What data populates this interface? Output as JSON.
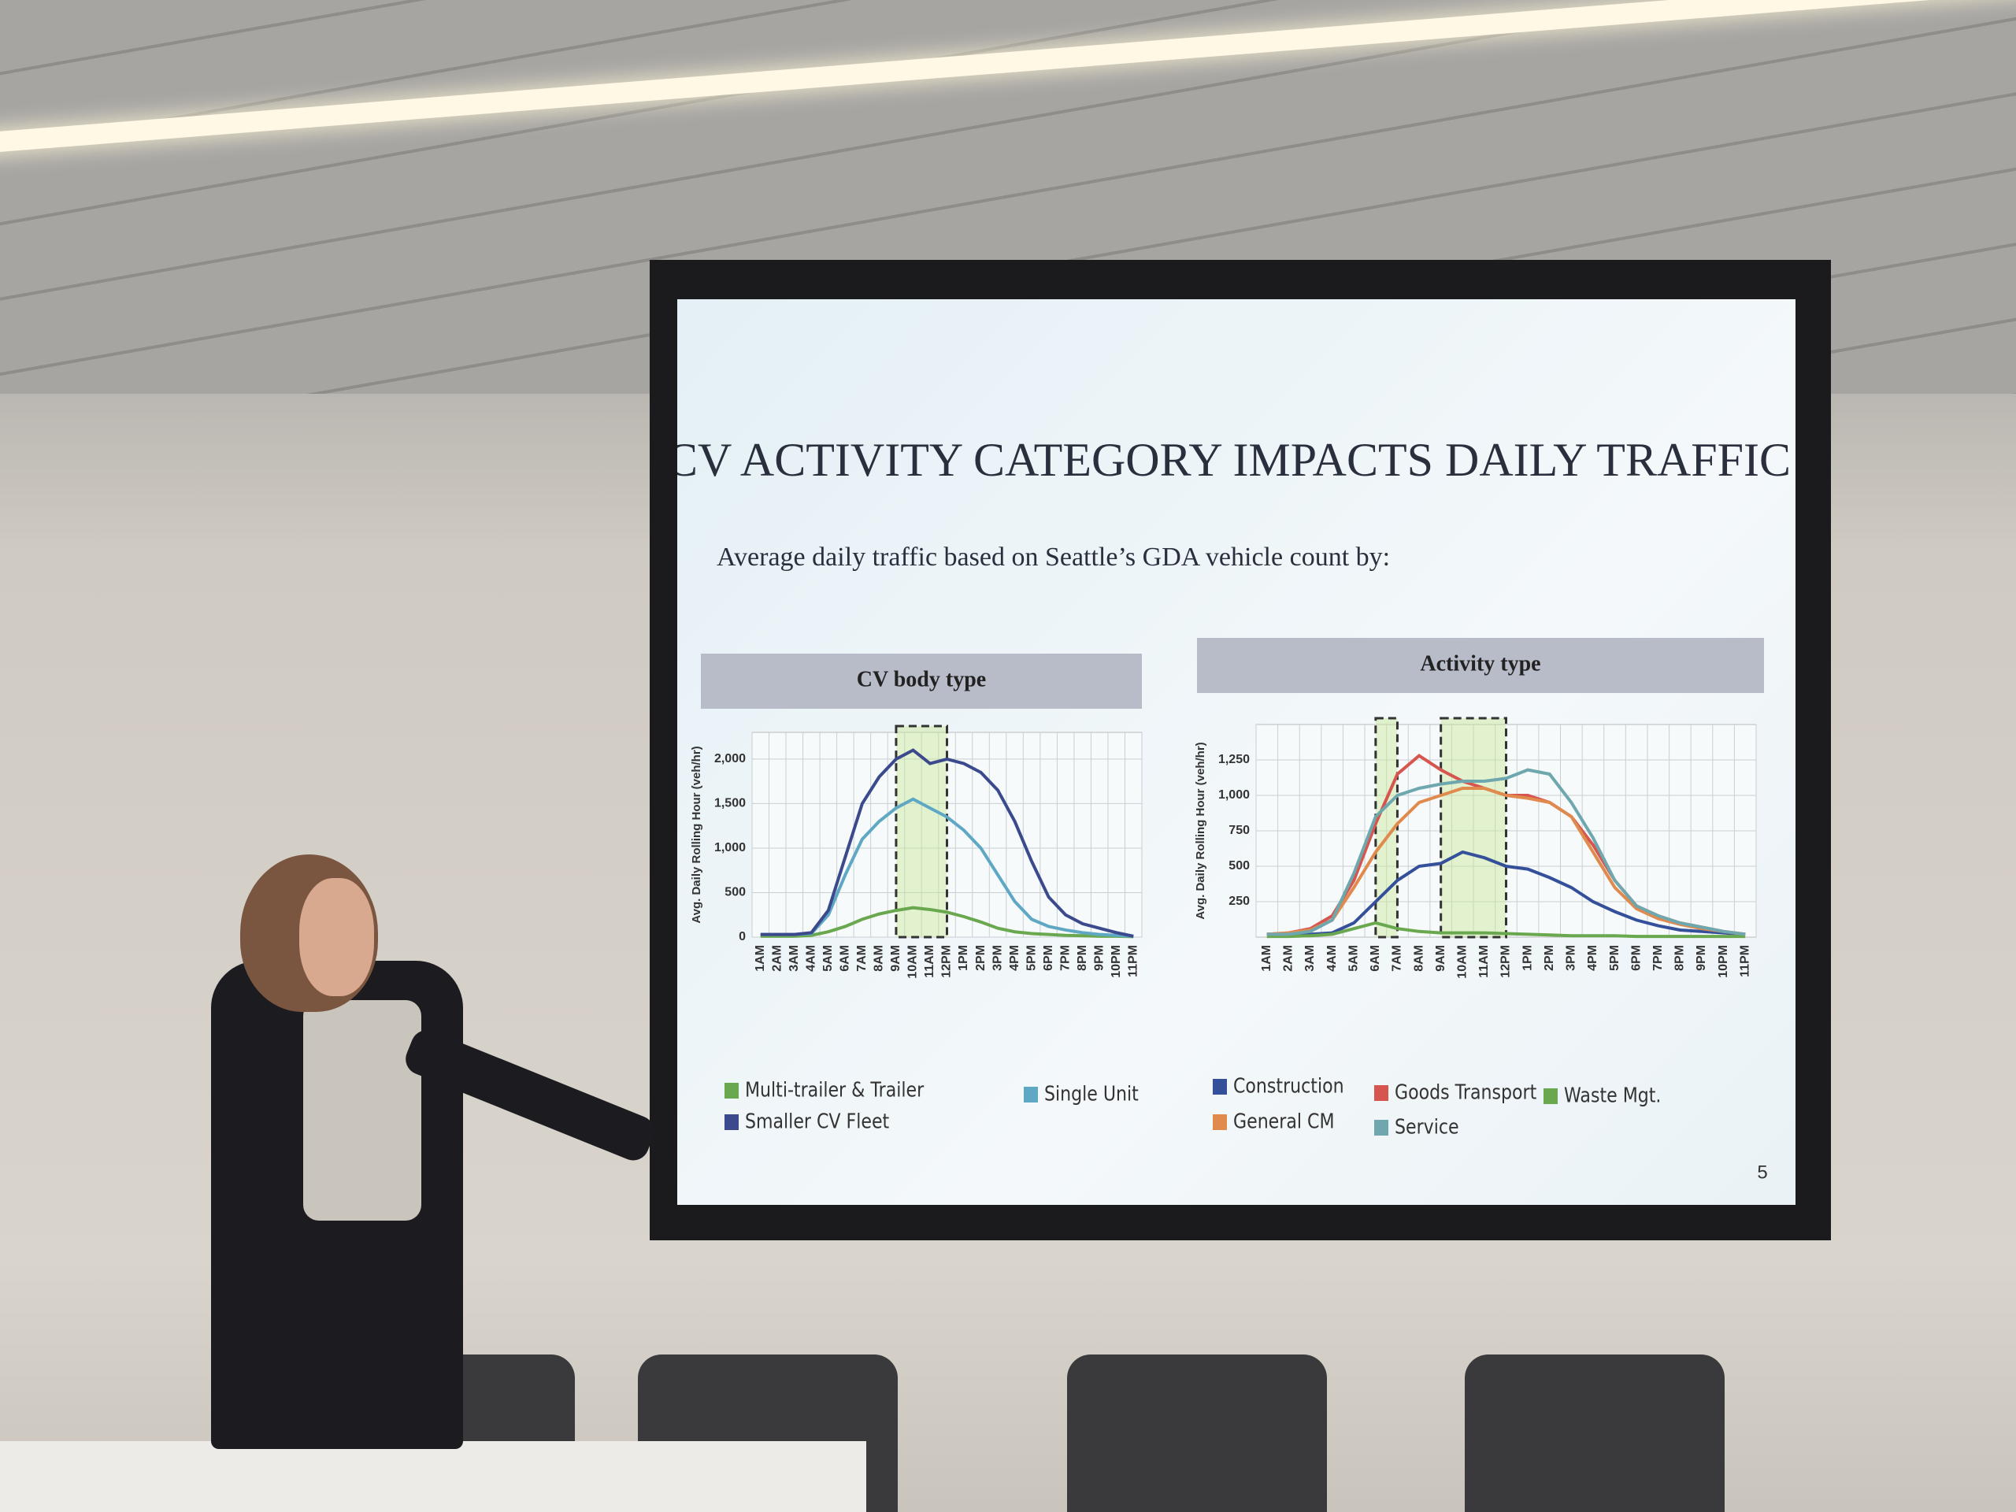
{
  "slide": {
    "title": "CV ACTIVITY CATEGORY IMPACTS DAILY TRAFFIC",
    "subtitle": "Average daily traffic based on Seattle’s GDA vehicle count by:",
    "page_number": "5"
  },
  "chart_data": [
    {
      "type": "line",
      "title": "CV body type",
      "ylabel": "Avg. Daily Rolling Hour (veh/hr)",
      "categories": [
        "1AM",
        "2AM",
        "3AM",
        "4AM",
        "5AM",
        "6AM",
        "7AM",
        "8AM",
        "9AM",
        "10AM",
        "11AM",
        "12PM",
        "1PM",
        "2PM",
        "3PM",
        "4PM",
        "5PM",
        "6PM",
        "7PM",
        "8PM",
        "9PM",
        "10PM",
        "11PM"
      ],
      "ylim": [
        0,
        2300
      ],
      "yticks": [
        0,
        500,
        {
          "value": 1000,
          "label": "1,000"
        },
        {
          "value": 1500,
          "label": "1,500"
        },
        {
          "value": 2000,
          "label": "2,000"
        }
      ],
      "grid": true,
      "highlights": [
        {
          "from": "9AM",
          "to": "12PM"
        }
      ],
      "series": [
        {
          "name": "Multi-trailer & Trailer",
          "color": "#6aa84f",
          "values": [
            10,
            10,
            10,
            20,
            60,
            120,
            200,
            260,
            300,
            330,
            310,
            280,
            230,
            170,
            100,
            60,
            40,
            30,
            20,
            15,
            10,
            10,
            5
          ]
        },
        {
          "name": "Single Unit",
          "color": "#5fa8c4",
          "values": [
            30,
            30,
            30,
            40,
            250,
            700,
            1100,
            1300,
            1450,
            1550,
            1450,
            1350,
            1200,
            1000,
            700,
            400,
            200,
            120,
            80,
            50,
            30,
            20,
            10
          ]
        },
        {
          "name": "Smaller CV Fleet",
          "color": "#3b4a8c",
          "values": [
            30,
            30,
            30,
            50,
            300,
            900,
            1500,
            1800,
            2000,
            2100,
            1950,
            2000,
            1950,
            1850,
            1650,
            1300,
            850,
            450,
            250,
            150,
            100,
            50,
            10
          ]
        }
      ]
    },
    {
      "type": "line",
      "title": "Activity type",
      "ylabel": "Avg. Daily Rolling Hour (veh/hr)",
      "categories": [
        "1AM",
        "2AM",
        "3AM",
        "4AM",
        "5AM",
        "6AM",
        "7AM",
        "8AM",
        "9AM",
        "10AM",
        "11AM",
        "12PM",
        "1PM",
        "2PM",
        "3PM",
        "4PM",
        "5PM",
        "6PM",
        "7PM",
        "8PM",
        "9PM",
        "10PM",
        "11PM"
      ],
      "ylim": [
        0,
        1500
      ],
      "yticks": [
        250,
        500,
        750,
        {
          "value": 1000,
          "label": "1,000"
        },
        {
          "value": 1250,
          "label": "1,250"
        }
      ],
      "grid": true,
      "highlights": [
        {
          "from": "6AM",
          "to": "7AM"
        },
        {
          "from": "9AM",
          "to": "12PM"
        }
      ],
      "series": [
        {
          "name": "Construction",
          "color": "#34509a",
          "values": [
            20,
            20,
            20,
            30,
            100,
            250,
            400,
            500,
            520,
            600,
            560,
            500,
            480,
            420,
            350,
            250,
            180,
            120,
            80,
            50,
            40,
            30,
            20
          ]
        },
        {
          "name": "Goods Transport",
          "color": "#d6564f",
          "values": [
            20,
            30,
            60,
            150,
            400,
            800,
            1150,
            1280,
            1180,
            1100,
            1050,
            1000,
            1000,
            950,
            850,
            650,
            400,
            220,
            150,
            100,
            70,
            40,
            20
          ]
        },
        {
          "name": "Waste Mgt.",
          "color": "#6aa84f",
          "values": [
            5,
            5,
            10,
            20,
            60,
            100,
            60,
            40,
            30,
            30,
            30,
            25,
            20,
            15,
            10,
            10,
            10,
            5,
            5,
            5,
            5,
            5,
            5
          ]
        },
        {
          "name": "General CM",
          "color": "#e08a4e",
          "values": [
            20,
            30,
            50,
            120,
            350,
            600,
            800,
            950,
            1000,
            1050,
            1050,
            1000,
            980,
            950,
            850,
            600,
            350,
            200,
            130,
            90,
            60,
            40,
            20
          ]
        },
        {
          "name": "Service",
          "color": "#6fa7ae",
          "values": [
            20,
            20,
            40,
            120,
            450,
            850,
            1000,
            1050,
            1080,
            1100,
            1100,
            1120,
            1180,
            1150,
            950,
            700,
            400,
            220,
            150,
            100,
            70,
            40,
            20
          ]
        }
      ]
    }
  ]
}
